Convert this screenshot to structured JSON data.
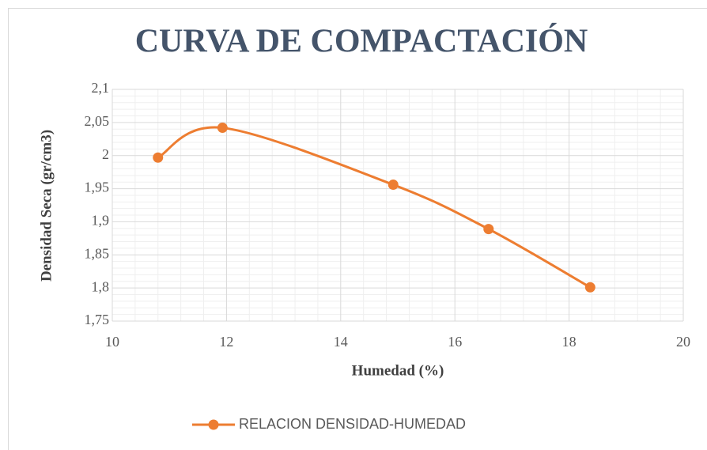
{
  "chart_data": {
    "type": "line",
    "title": "CURVA DE COMPACTACIÓN",
    "x_label": "Humedad (%)",
    "y_label": "Densidad Seca (gr/cm3)",
    "x": [
      10.8,
      11.93,
      14.92,
      16.59,
      18.37
    ],
    "series": [
      {
        "name": "RELACION DENSIDAD-HUMEDAD",
        "color": "#ed7d31",
        "values": [
          1.997,
          2.042,
          1.956,
          1.889,
          1.801
        ]
      }
    ],
    "xlim": [
      10,
      20
    ],
    "xticks": [
      10,
      12,
      14,
      16,
      18,
      20
    ],
    "ylim": [
      1.75,
      2.1
    ],
    "yticks": [
      {
        "value": 1.75,
        "label": "1,75"
      },
      {
        "value": 1.8,
        "label": "1,8"
      },
      {
        "value": 1.85,
        "label": "1,85"
      },
      {
        "value": 1.9,
        "label": "1,9"
      },
      {
        "value": 1.95,
        "label": "1,95"
      },
      {
        "value": 2,
        "label": "2"
      },
      {
        "value": 2.05,
        "label": "2,05"
      },
      {
        "value": 2.1,
        "label": "2,1"
      }
    ],
    "grid": true,
    "minor_grid": true,
    "smooth": true,
    "legend": "bottom"
  }
}
